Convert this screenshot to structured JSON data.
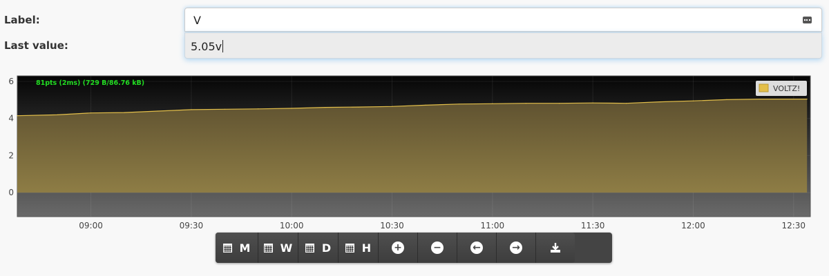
{
  "form": {
    "label_caption": "Label:",
    "label_value": "V",
    "last_caption": "Last value:",
    "last_value": "5.05v"
  },
  "chart_data": {
    "type": "area",
    "stats_text": "81pts (2ms) (729 B/86.76 kB)",
    "legend": "VOLTZ!",
    "series_color": "#e3bf4a",
    "fill_color": "#8c7a3e",
    "x_ticks": [
      "09:00",
      "09:30",
      "10:00",
      "10:30",
      "11:00",
      "11:30",
      "12:00",
      "12:30"
    ],
    "xlim": [
      "08:38",
      "12:35"
    ],
    "y_ticks": [
      0,
      2,
      4,
      6
    ],
    "ylim": [
      -1.3,
      6.3
    ],
    "x": [
      "08:38",
      "08:50",
      "09:00",
      "09:10",
      "09:20",
      "09:30",
      "09:40",
      "09:50",
      "10:00",
      "10:10",
      "10:20",
      "10:30",
      "10:40",
      "10:50",
      "11:00",
      "11:10",
      "11:20",
      "11:30",
      "11:40",
      "11:50",
      "12:00",
      "12:10",
      "12:20",
      "12:34"
    ],
    "y": [
      4.15,
      4.2,
      4.3,
      4.32,
      4.4,
      4.48,
      4.5,
      4.52,
      4.55,
      4.6,
      4.62,
      4.65,
      4.72,
      4.78,
      4.8,
      4.82,
      4.82,
      4.84,
      4.82,
      4.9,
      4.95,
      5.02,
      5.05,
      5.05
    ]
  },
  "toolbar": {
    "buttons": [
      {
        "name": "month-button",
        "icon": "calendar-icon",
        "label": "M"
      },
      {
        "name": "week-button",
        "icon": "calendar-icon",
        "label": "W"
      },
      {
        "name": "day-button",
        "icon": "calendar-icon",
        "label": "D"
      },
      {
        "name": "hour-button",
        "icon": "calendar-icon",
        "label": "H"
      },
      {
        "name": "zoom-in-button",
        "icon": "plus-icon",
        "label": ""
      },
      {
        "name": "zoom-out-button",
        "icon": "minus-icon",
        "label": ""
      },
      {
        "name": "pan-left-button",
        "icon": "arrow-left-icon",
        "label": ""
      },
      {
        "name": "pan-right-button",
        "icon": "arrow-right-icon",
        "label": ""
      },
      {
        "name": "download-button",
        "icon": "download-icon",
        "label": ""
      }
    ]
  }
}
